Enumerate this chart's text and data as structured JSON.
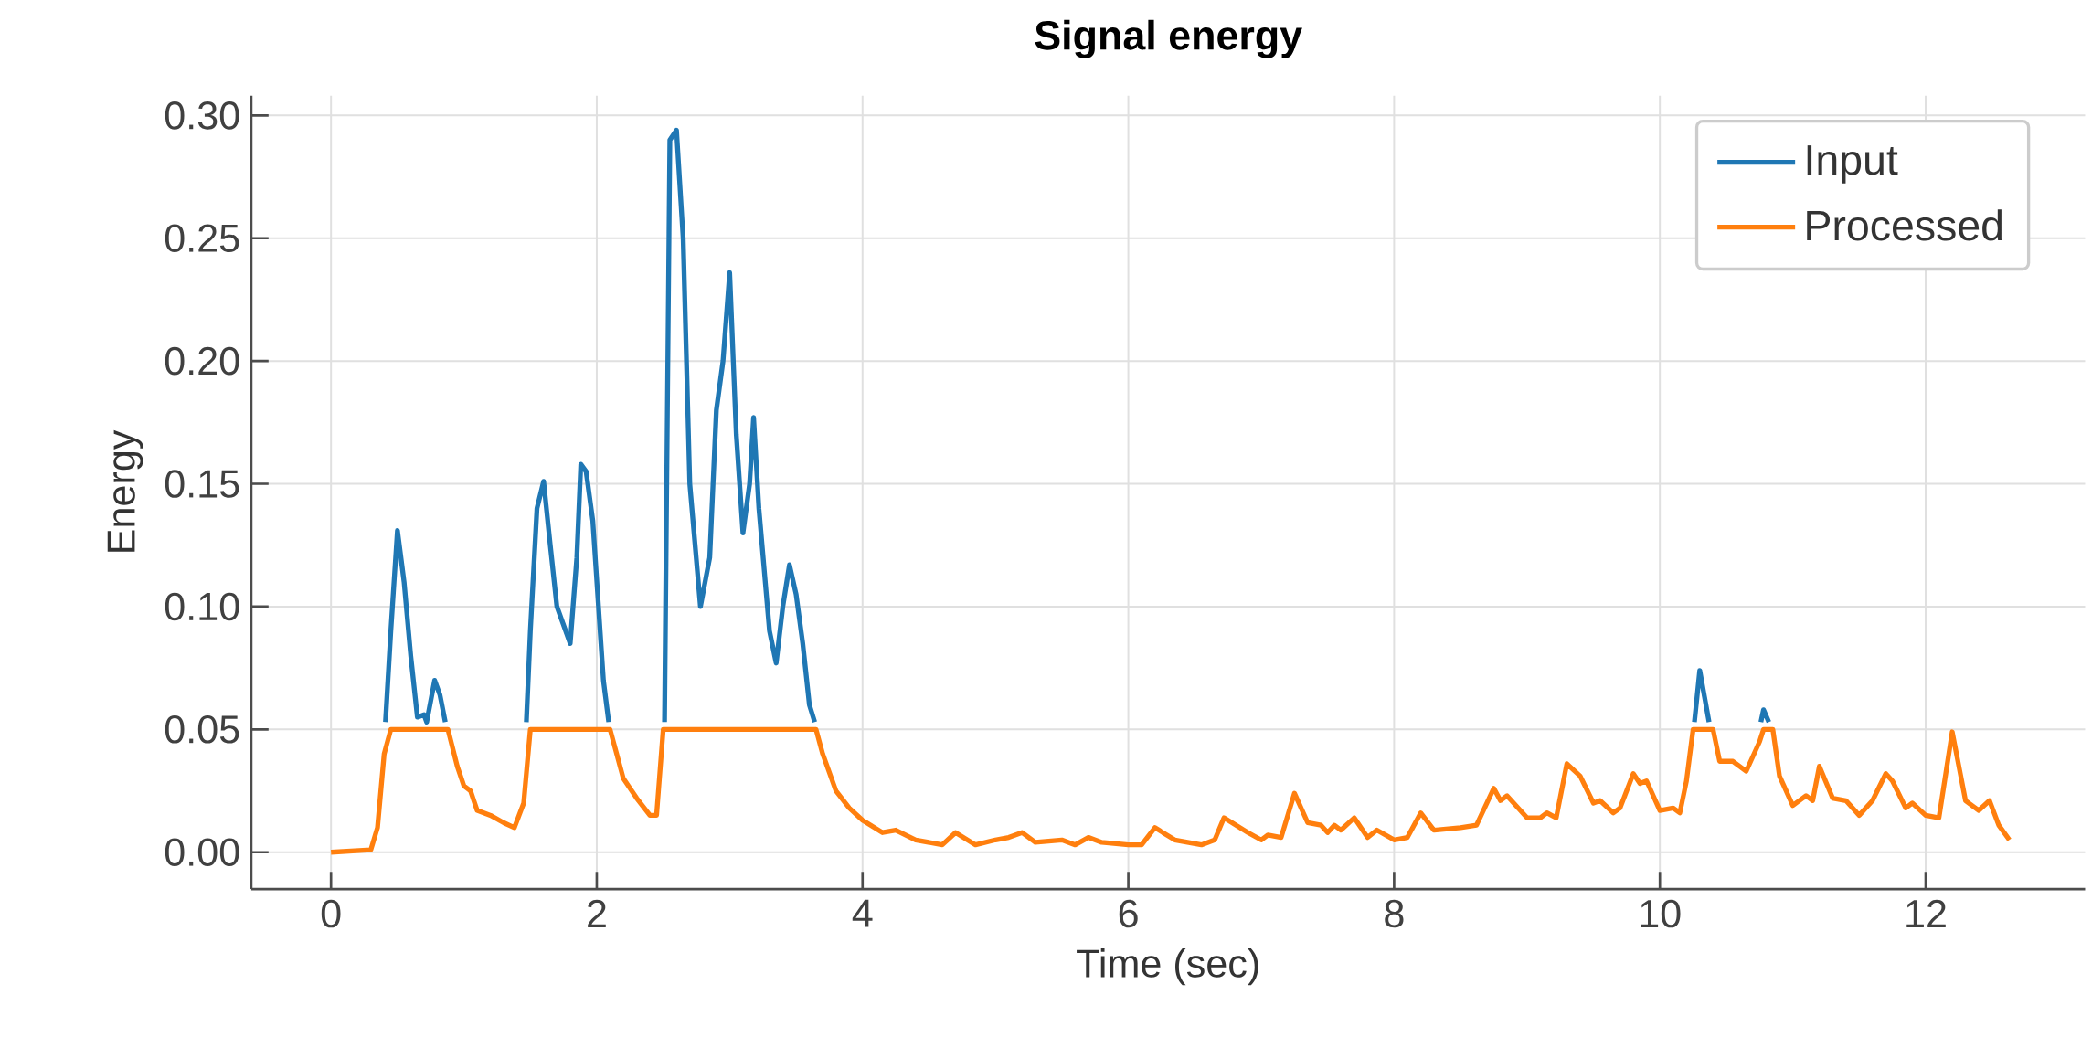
{
  "chart_data": {
    "type": "line",
    "title": "Signal energy",
    "xlabel": "Time (sec)",
    "ylabel": "Energy",
    "x": [
      0,
      0.3,
      0.35,
      0.4,
      0.45,
      0.5,
      0.55,
      0.6,
      0.65,
      0.7,
      0.72,
      0.78,
      0.82,
      0.88,
      0.95,
      1.0,
      1.05,
      1.1,
      1.2,
      1.3,
      1.38,
      1.45,
      1.5,
      1.55,
      1.6,
      1.65,
      1.7,
      1.8,
      1.85,
      1.88,
      1.92,
      1.97,
      2.05,
      2.1,
      2.2,
      2.3,
      2.4,
      2.45,
      2.5,
      2.55,
      2.6,
      2.65,
      2.7,
      2.78,
      2.85,
      2.9,
      2.95,
      3.0,
      3.05,
      3.1,
      3.15,
      3.18,
      3.22,
      3.3,
      3.35,
      3.4,
      3.45,
      3.5,
      3.55,
      3.6,
      3.65,
      3.7,
      3.8,
      3.9,
      4.0,
      4.15,
      4.25,
      4.4,
      4.6,
      4.7,
      4.85,
      5.0,
      5.1,
      5.2,
      5.3,
      5.5,
      5.6,
      5.7,
      5.8,
      6.0,
      6.1,
      6.2,
      6.35,
      6.55,
      6.65,
      6.72,
      6.9,
      7.0,
      7.05,
      7.15,
      7.25,
      7.35,
      7.45,
      7.5,
      7.55,
      7.6,
      7.7,
      7.8,
      7.87,
      8.0,
      8.1,
      8.2,
      8.3,
      8.5,
      8.62,
      8.75,
      8.8,
      8.85,
      9.0,
      9.1,
      9.15,
      9.22,
      9.3,
      9.4,
      9.5,
      9.55,
      9.65,
      9.7,
      9.8,
      9.85,
      9.9,
      10.0,
      10.1,
      10.15,
      10.2,
      10.25,
      10.3,
      10.4,
      10.45,
      10.55,
      10.65,
      10.75,
      10.78,
      10.85,
      10.9,
      11.0,
      11.1,
      11.15,
      11.2,
      11.3,
      11.4,
      11.5,
      11.6,
      11.7,
      11.75,
      11.85,
      11.9,
      12.0,
      12.1,
      12.2,
      12.3,
      12.4,
      12.48,
      12.55,
      12.63
    ],
    "series": [
      {
        "name": "Input",
        "color": "#1f77b4",
        "x": [
          0.41,
          0.45,
          0.5,
          0.55,
          0.6,
          0.65,
          0.7,
          0.72,
          0.78,
          0.82,
          0.86,
          1.0,
          1.47,
          1.5,
          1.55,
          1.6,
          1.65,
          1.7,
          1.8,
          1.85,
          1.88,
          1.92,
          1.97,
          2.05,
          2.09,
          2.3,
          2.51,
          2.55,
          2.6,
          2.65,
          2.7,
          2.78,
          2.85,
          2.9,
          2.95,
          3.0,
          3.05,
          3.1,
          3.15,
          3.18,
          3.22,
          3.3,
          3.35,
          3.4,
          3.45,
          3.5,
          3.55,
          3.6,
          3.64,
          6,
          10.26,
          10.3,
          10.37,
          10.5,
          10.76,
          10.78,
          10.82
        ],
        "values": [
          0.053,
          0.09,
          0.131,
          0.11,
          0.08,
          0.055,
          0.056,
          0.053,
          0.07,
          0.064,
          0.053,
          null,
          0.053,
          0.09,
          0.14,
          0.151,
          0.125,
          0.1,
          0.085,
          0.12,
          0.158,
          0.155,
          0.135,
          0.07,
          0.053,
          null,
          0.053,
          0.29,
          0.294,
          0.25,
          0.15,
          0.1,
          0.12,
          0.18,
          0.2,
          0.236,
          0.17,
          0.13,
          0.15,
          0.177,
          0.14,
          0.09,
          0.077,
          0.1,
          0.117,
          0.105,
          0.085,
          0.06,
          0.053,
          null,
          0.053,
          0.074,
          0.053,
          null,
          0.053,
          0.058,
          0.053
        ]
      },
      {
        "name": "Processed",
        "color": "#ff7f0e",
        "values": [
          0,
          0.001,
          0.01,
          0.04,
          0.05,
          0.05,
          0.05,
          0.05,
          0.05,
          0.05,
          0.05,
          0.05,
          0.05,
          0.05,
          0.035,
          0.027,
          0.025,
          0.017,
          0.015,
          0.012,
          0.01,
          0.02,
          0.05,
          0.05,
          0.05,
          0.05,
          0.05,
          0.05,
          0.05,
          0.05,
          0.05,
          0.05,
          0.05,
          0.05,
          0.03,
          0.022,
          0.015,
          0.015,
          0.05,
          0.05,
          0.05,
          0.05,
          0.05,
          0.05,
          0.05,
          0.05,
          0.05,
          0.05,
          0.05,
          0.05,
          0.05,
          0.05,
          0.05,
          0.05,
          0.05,
          0.05,
          0.05,
          0.05,
          0.05,
          0.05,
          0.05,
          0.04,
          0.025,
          0.018,
          0.013,
          0.008,
          0.009,
          0.005,
          0.003,
          0.008,
          0.003,
          0.005,
          0.006,
          0.008,
          0.004,
          0.005,
          0.003,
          0.006,
          0.004,
          0.003,
          0.003,
          0.01,
          0.005,
          0.003,
          0.005,
          0.014,
          0.008,
          0.005,
          0.007,
          0.006,
          0.024,
          0.012,
          0.011,
          0.008,
          0.011,
          0.009,
          0.014,
          0.006,
          0.009,
          0.005,
          0.006,
          0.016,
          0.009,
          0.01,
          0.011,
          0.026,
          0.021,
          0.023,
          0.014,
          0.014,
          0.016,
          0.014,
          0.036,
          0.031,
          0.02,
          0.021,
          0.016,
          0.018,
          0.032,
          0.028,
          0.029,
          0.017,
          0.018,
          0.016,
          0.029,
          0.05,
          0.05,
          0.05,
          0.037,
          0.037,
          0.033,
          0.045,
          0.05,
          0.05,
          0.031,
          0.019,
          0.023,
          0.021,
          0.035,
          0.022,
          0.021,
          0.015,
          0.021,
          0.032,
          0.029,
          0.018,
          0.02,
          0.015,
          0.014,
          0.049,
          0.021,
          0.017,
          0.021,
          0.011,
          0.005
        ]
      }
    ],
    "xlim": [
      -0.6,
      13.2
    ],
    "ylim": [
      -0.015,
      0.308
    ],
    "xticks": [
      0,
      2,
      4,
      6,
      8,
      10,
      12
    ],
    "yticks": [
      {
        "value": 0,
        "label": "0.00"
      },
      {
        "value": 0.05,
        "label": "0.05"
      },
      {
        "value": 0.1,
        "label": "0.10"
      },
      {
        "value": 0.15,
        "label": "0.15"
      },
      {
        "value": 0.2,
        "label": "0.20"
      },
      {
        "value": 0.25,
        "label": "0.25"
      },
      {
        "value": 0.3,
        "label": "0.30"
      }
    ],
    "grid": true,
    "legend": "top right",
    "marker": "none",
    "line_style": "solid"
  }
}
